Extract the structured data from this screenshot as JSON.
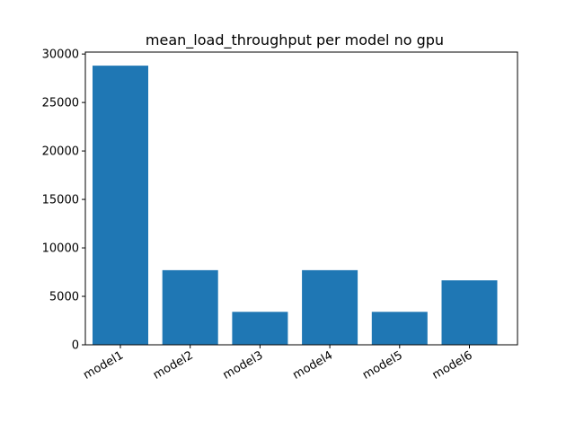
{
  "chart_data": {
    "type": "bar",
    "title": "mean_load_throughput per model no gpu",
    "xlabel": "",
    "ylabel": "",
    "categories": [
      "model1",
      "model2",
      "model3",
      "model4",
      "model5",
      "model6"
    ],
    "values": [
      28800,
      7700,
      3400,
      7700,
      3400,
      6650
    ],
    "ylim": [
      0,
      30200
    ],
    "yticks": [
      0,
      5000,
      10000,
      15000,
      20000,
      25000,
      30000
    ],
    "ytick_labels": [
      "0",
      "5000",
      "10000",
      "15000",
      "20000",
      "25000",
      "30000"
    ],
    "bar_color": "#1f77b4",
    "grid": false,
    "legend": "none"
  }
}
